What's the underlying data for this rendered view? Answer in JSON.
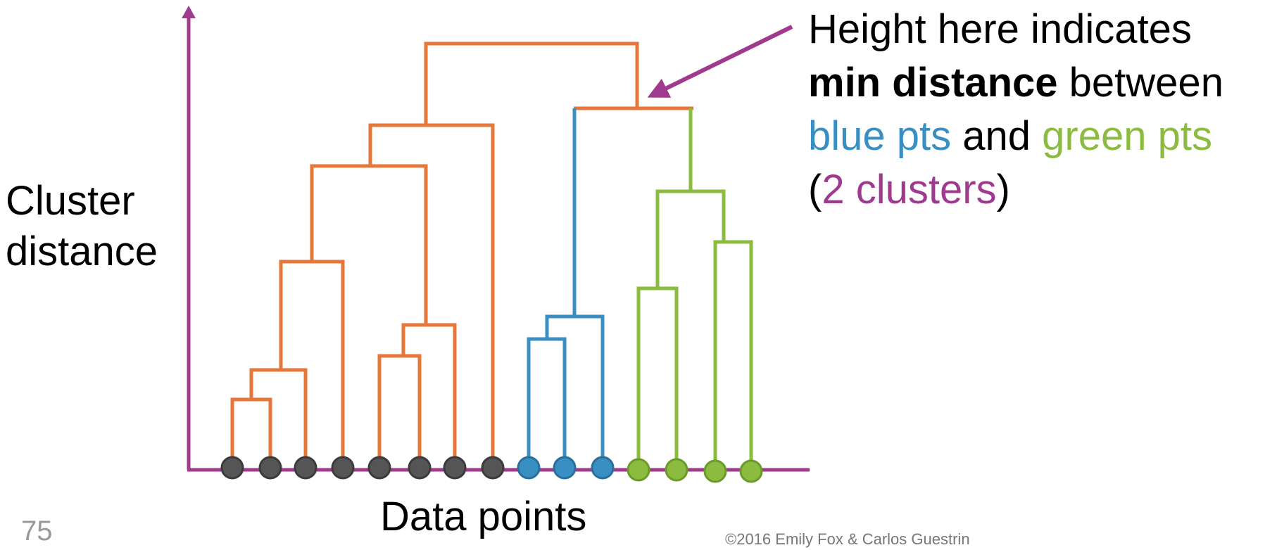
{
  "axes": {
    "y_label_line1": "Cluster",
    "y_label_line2": "distance",
    "x_label": "Data points"
  },
  "annotation": {
    "line1": "Height here indicates",
    "line2_bold": "min distance",
    "line2_rest": " between",
    "line3_blue": "blue pts",
    "line3_mid": " and ",
    "line3_green": "green pts",
    "line4_open": "(",
    "line4_purple": "2 clusters",
    "line4_close": ")"
  },
  "footer": {
    "slide_number": "75",
    "copyright": "©2016 Emily Fox & Carlos Guestrin"
  },
  "colors": {
    "axis": "#a03a8e",
    "orange": "#e5773a",
    "blue": "#3a8fc2",
    "green": "#8bbb3f",
    "gray_point": "#555555",
    "arrow": "#a03a8e"
  }
}
